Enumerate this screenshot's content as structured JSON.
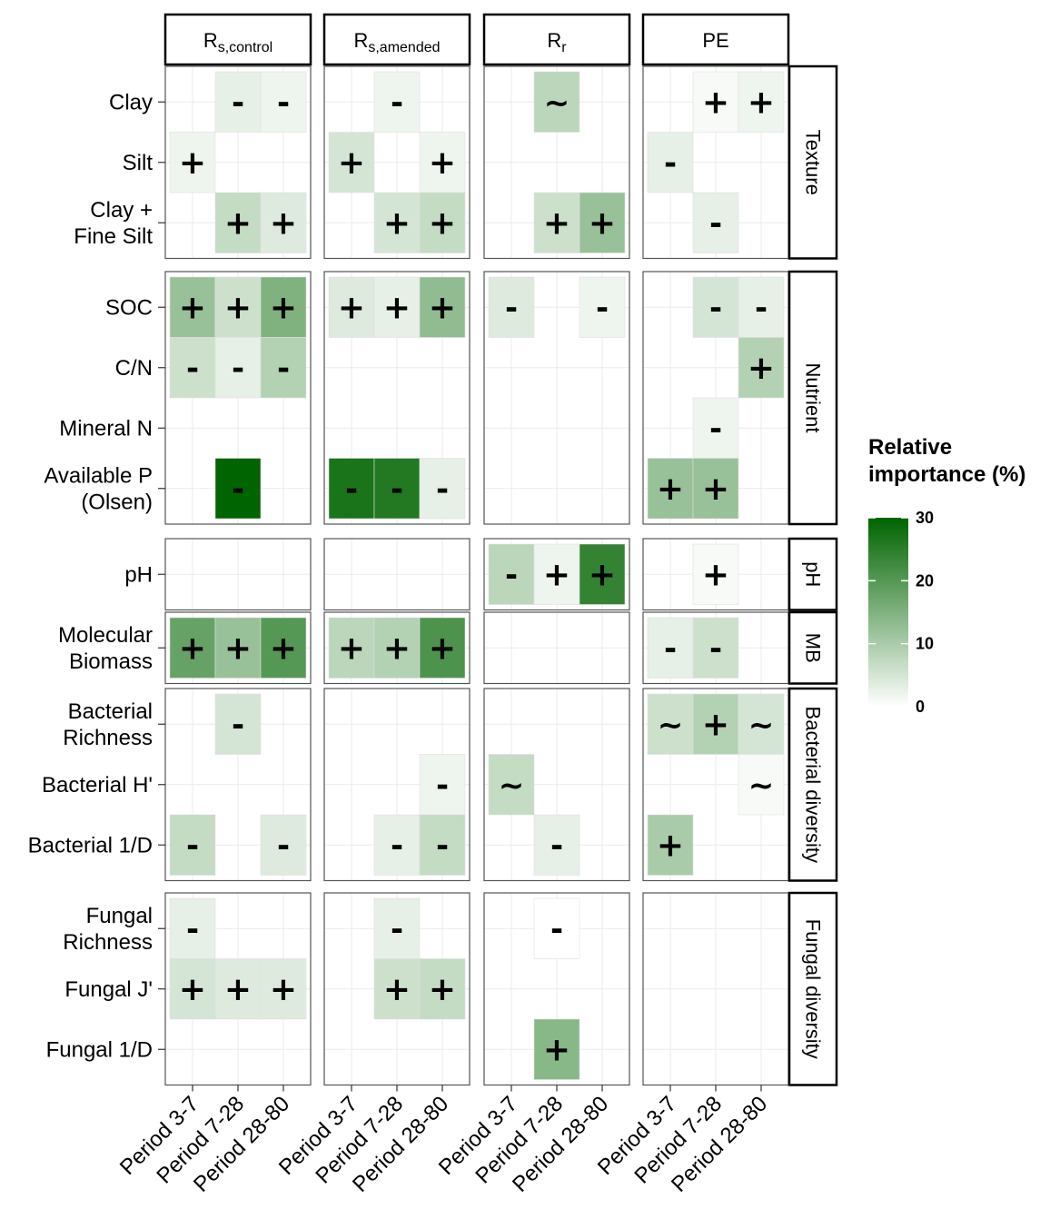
{
  "chart_data": {
    "type": "heatmap",
    "columns": [
      {
        "base": "R",
        "sub": "s,control"
      },
      {
        "base": "R",
        "sub": "s,amended"
      },
      {
        "base": "R",
        "sub": "r"
      },
      {
        "base": "PE",
        "sub": ""
      }
    ],
    "x_categories": [
      "Period 3-7",
      "Period 7-28",
      "Period 28-80"
    ],
    "groups": [
      {
        "label": "Texture",
        "rows": [
          [
            "Clay"
          ],
          [
            "Silt"
          ],
          [
            "Clay +",
            "Fine Silt"
          ]
        ]
      },
      {
        "label": "Nutrient",
        "rows": [
          [
            "SOC"
          ],
          [
            "C/N"
          ],
          [
            "Mineral N"
          ],
          [
            "Available P",
            "(Olsen)"
          ]
        ]
      },
      {
        "label": "pH",
        "rows": [
          [
            "pH"
          ]
        ]
      },
      {
        "label": "MB",
        "rows": [
          [
            "Molecular",
            "Biomass"
          ]
        ]
      },
      {
        "label": "Bacterial diversity",
        "rows": [
          [
            "Bacterial",
            "Richness"
          ],
          [
            "Bacterial H'"
          ],
          [
            "Bacterial 1/D"
          ]
        ]
      },
      {
        "label": "Fungal diversity",
        "rows": [
          [
            "Fungal",
            "Richness"
          ],
          [
            "Fungal J'"
          ],
          [
            "Fungal 1/D"
          ]
        ]
      }
    ],
    "cells": [
      {
        "col": 0,
        "row": 0,
        "x": 1,
        "value": 3,
        "sign": "-"
      },
      {
        "col": 0,
        "row": 0,
        "x": 2,
        "value": 2,
        "sign": "-"
      },
      {
        "col": 0,
        "row": 1,
        "x": 0,
        "value": 2,
        "sign": "+"
      },
      {
        "col": 0,
        "row": 2,
        "x": 1,
        "value": 7,
        "sign": "+"
      },
      {
        "col": 0,
        "row": 2,
        "x": 2,
        "value": 4,
        "sign": "+"
      },
      {
        "col": 0,
        "row": 3,
        "x": 0,
        "value": 12,
        "sign": "+"
      },
      {
        "col": 0,
        "row": 3,
        "x": 1,
        "value": 6,
        "sign": "+"
      },
      {
        "col": 0,
        "row": 3,
        "x": 2,
        "value": 15,
        "sign": "+"
      },
      {
        "col": 0,
        "row": 4,
        "x": 0,
        "value": 6,
        "sign": "-"
      },
      {
        "col": 0,
        "row": 4,
        "x": 1,
        "value": 3,
        "sign": "-"
      },
      {
        "col": 0,
        "row": 4,
        "x": 2,
        "value": 9,
        "sign": "-"
      },
      {
        "col": 0,
        "row": 6,
        "x": 1,
        "value": 30,
        "sign": "-"
      },
      {
        "col": 0,
        "row": 8,
        "x": 0,
        "value": 18,
        "sign": "+"
      },
      {
        "col": 0,
        "row": 8,
        "x": 1,
        "value": 12,
        "sign": "+"
      },
      {
        "col": 0,
        "row": 8,
        "x": 2,
        "value": 20,
        "sign": "+"
      },
      {
        "col": 0,
        "row": 9,
        "x": 1,
        "value": 5,
        "sign": "-"
      },
      {
        "col": 0,
        "row": 11,
        "x": 0,
        "value": 7,
        "sign": "-"
      },
      {
        "col": 0,
        "row": 11,
        "x": 2,
        "value": 4,
        "sign": "-"
      },
      {
        "col": 0,
        "row": 12,
        "x": 0,
        "value": 3,
        "sign": "-"
      },
      {
        "col": 0,
        "row": 13,
        "x": 0,
        "value": 5,
        "sign": "+"
      },
      {
        "col": 0,
        "row": 13,
        "x": 1,
        "value": 4,
        "sign": "+"
      },
      {
        "col": 0,
        "row": 13,
        "x": 2,
        "value": 4,
        "sign": "+"
      },
      {
        "col": 1,
        "row": 0,
        "x": 1,
        "value": 2,
        "sign": "-"
      },
      {
        "col": 1,
        "row": 1,
        "x": 0,
        "value": 5,
        "sign": "+"
      },
      {
        "col": 1,
        "row": 1,
        "x": 2,
        "value": 2,
        "sign": "+"
      },
      {
        "col": 1,
        "row": 2,
        "x": 1,
        "value": 5,
        "sign": "+"
      },
      {
        "col": 1,
        "row": 2,
        "x": 2,
        "value": 7,
        "sign": "+"
      },
      {
        "col": 1,
        "row": 3,
        "x": 0,
        "value": 4,
        "sign": "+"
      },
      {
        "col": 1,
        "row": 3,
        "x": 1,
        "value": 3,
        "sign": "+"
      },
      {
        "col": 1,
        "row": 3,
        "x": 2,
        "value": 13,
        "sign": "+"
      },
      {
        "col": 1,
        "row": 6,
        "x": 0,
        "value": 27,
        "sign": "-"
      },
      {
        "col": 1,
        "row": 6,
        "x": 1,
        "value": 26,
        "sign": "-"
      },
      {
        "col": 1,
        "row": 6,
        "x": 2,
        "value": 3,
        "sign": "-"
      },
      {
        "col": 1,
        "row": 8,
        "x": 0,
        "value": 8,
        "sign": "+"
      },
      {
        "col": 1,
        "row": 8,
        "x": 1,
        "value": 9,
        "sign": "+"
      },
      {
        "col": 1,
        "row": 8,
        "x": 2,
        "value": 21,
        "sign": "+"
      },
      {
        "col": 1,
        "row": 10,
        "x": 2,
        "value": 2,
        "sign": "-"
      },
      {
        "col": 1,
        "row": 11,
        "x": 1,
        "value": 3,
        "sign": "-"
      },
      {
        "col": 1,
        "row": 11,
        "x": 2,
        "value": 7,
        "sign": "-"
      },
      {
        "col": 1,
        "row": 12,
        "x": 1,
        "value": 3,
        "sign": "-"
      },
      {
        "col": 1,
        "row": 13,
        "x": 1,
        "value": 6,
        "sign": "+"
      },
      {
        "col": 1,
        "row": 13,
        "x": 2,
        "value": 7,
        "sign": "+"
      },
      {
        "col": 2,
        "row": 0,
        "x": 1,
        "value": 8,
        "sign": "~"
      },
      {
        "col": 2,
        "row": 2,
        "x": 1,
        "value": 6,
        "sign": "+"
      },
      {
        "col": 2,
        "row": 2,
        "x": 2,
        "value": 12,
        "sign": "+"
      },
      {
        "col": 2,
        "row": 3,
        "x": 0,
        "value": 4,
        "sign": "-"
      },
      {
        "col": 2,
        "row": 3,
        "x": 2,
        "value": 2,
        "sign": "-"
      },
      {
        "col": 2,
        "row": 7,
        "x": 0,
        "value": 8,
        "sign": "-"
      },
      {
        "col": 2,
        "row": 7,
        "x": 1,
        "value": 2,
        "sign": "+"
      },
      {
        "col": 2,
        "row": 7,
        "x": 2,
        "value": 24,
        "sign": "+"
      },
      {
        "col": 2,
        "row": 10,
        "x": 0,
        "value": 7,
        "sign": "~"
      },
      {
        "col": 2,
        "row": 11,
        "x": 1,
        "value": 3,
        "sign": "-"
      },
      {
        "col": 2,
        "row": 12,
        "x": 1,
        "value": 0,
        "sign": "-"
      },
      {
        "col": 2,
        "row": 14,
        "x": 1,
        "value": 14,
        "sign": "+"
      },
      {
        "col": 3,
        "row": 0,
        "x": 1,
        "value": 1,
        "sign": "+"
      },
      {
        "col": 3,
        "row": 0,
        "x": 2,
        "value": 2,
        "sign": "+"
      },
      {
        "col": 3,
        "row": 1,
        "x": 0,
        "value": 3,
        "sign": "-"
      },
      {
        "col": 3,
        "row": 2,
        "x": 1,
        "value": 3,
        "sign": "-"
      },
      {
        "col": 3,
        "row": 3,
        "x": 1,
        "value": 5,
        "sign": "-"
      },
      {
        "col": 3,
        "row": 3,
        "x": 2,
        "value": 3,
        "sign": "-"
      },
      {
        "col": 3,
        "row": 4,
        "x": 2,
        "value": 9,
        "sign": "+"
      },
      {
        "col": 3,
        "row": 5,
        "x": 1,
        "value": 2,
        "sign": "-"
      },
      {
        "col": 3,
        "row": 6,
        "x": 0,
        "value": 12,
        "sign": "+"
      },
      {
        "col": 3,
        "row": 6,
        "x": 1,
        "value": 12,
        "sign": "+"
      },
      {
        "col": 3,
        "row": 7,
        "x": 1,
        "value": 1,
        "sign": "+"
      },
      {
        "col": 3,
        "row": 8,
        "x": 0,
        "value": 3,
        "sign": "-"
      },
      {
        "col": 3,
        "row": 8,
        "x": 1,
        "value": 6,
        "sign": "-"
      },
      {
        "col": 3,
        "row": 9,
        "x": 0,
        "value": 6,
        "sign": "~"
      },
      {
        "col": 3,
        "row": 9,
        "x": 1,
        "value": 9,
        "sign": "+"
      },
      {
        "col": 3,
        "row": 9,
        "x": 2,
        "value": 5,
        "sign": "~"
      },
      {
        "col": 3,
        "row": 10,
        "x": 2,
        "value": 1,
        "sign": "~"
      },
      {
        "col": 3,
        "row": 11,
        "x": 0,
        "value": 10,
        "sign": "+"
      }
    ],
    "legend": {
      "title_line1": "Relative",
      "title_line2": "importance (%)",
      "ticks": [
        30,
        20,
        10,
        0
      ],
      "min": 0,
      "max": 30,
      "low_color": "#ffffff",
      "high_color": "#006400"
    }
  }
}
